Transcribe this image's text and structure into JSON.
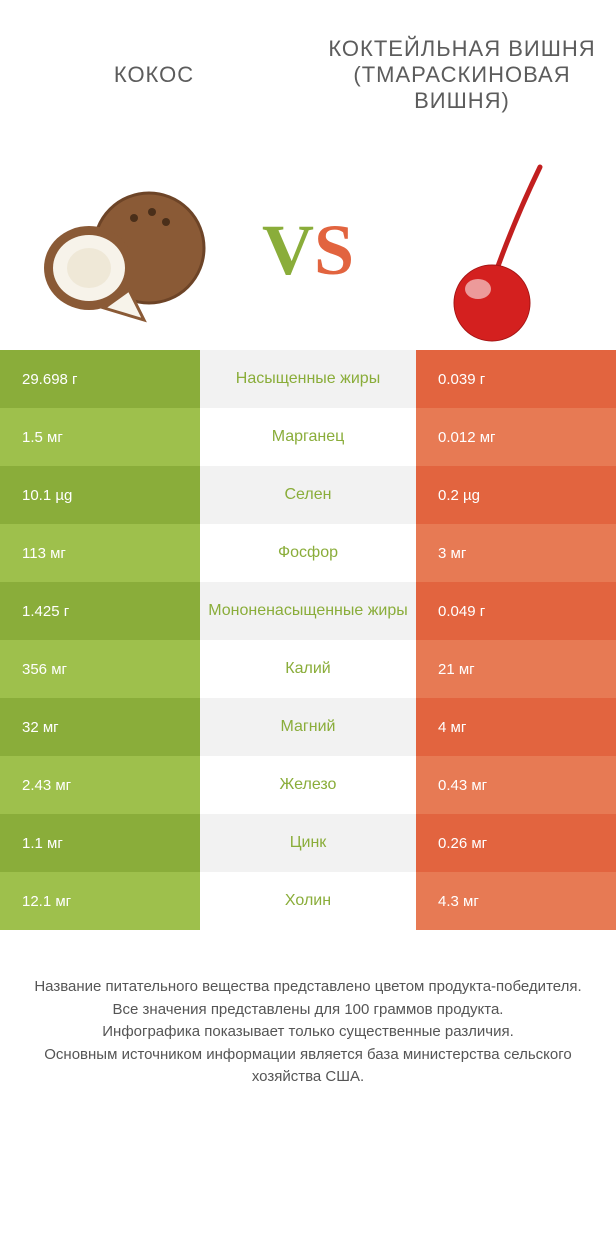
{
  "colors": {
    "left_dark": "#8aad3a",
    "left_light": "#9ec04c",
    "right_dark": "#e2643f",
    "right_light": "#e77a54",
    "mid_dark": "#f2f2f2",
    "mid_light": "#ffffff",
    "vs_v": "#8aad3a",
    "vs_s": "#e2643f",
    "winner_left": "#8aad3a",
    "winner_right": "#e2643f"
  },
  "left_title": "КОКОС",
  "right_title": "КОКТЕЙЛЬНАЯ ВИШНЯ (ТМАРАСКИНОВАЯ ВИШНЯ)",
  "rows": [
    {
      "name": "Насыщенные жиры",
      "left": "29.698 г",
      "right": "0.039 г",
      "winner": "left"
    },
    {
      "name": "Марганец",
      "left": "1.5 мг",
      "right": "0.012 мг",
      "winner": "left"
    },
    {
      "name": "Селен",
      "left": "10.1 µg",
      "right": "0.2 µg",
      "winner": "left"
    },
    {
      "name": "Фосфор",
      "left": "113 мг",
      "right": "3 мг",
      "winner": "left"
    },
    {
      "name": "Мононенасыщенные жиры",
      "left": "1.425 г",
      "right": "0.049 г",
      "winner": "left"
    },
    {
      "name": "Калий",
      "left": "356 мг",
      "right": "21 мг",
      "winner": "left"
    },
    {
      "name": "Магний",
      "left": "32 мг",
      "right": "4 мг",
      "winner": "left"
    },
    {
      "name": "Железо",
      "left": "2.43 мг",
      "right": "0.43 мг",
      "winner": "left"
    },
    {
      "name": "Цинк",
      "left": "1.1 мг",
      "right": "0.26 мг",
      "winner": "left"
    },
    {
      "name": "Холин",
      "left": "12.1 мг",
      "right": "4.3 мг",
      "winner": "left"
    }
  ],
  "footer_lines": [
    "Название питательного вещества представлено цветом продукта-победителя.",
    "Все значения представлены для 100 граммов продукта.",
    "Инфографика показывает только существенные различия.",
    "Основным источником информации является база министерства сельского хозяйства США."
  ]
}
